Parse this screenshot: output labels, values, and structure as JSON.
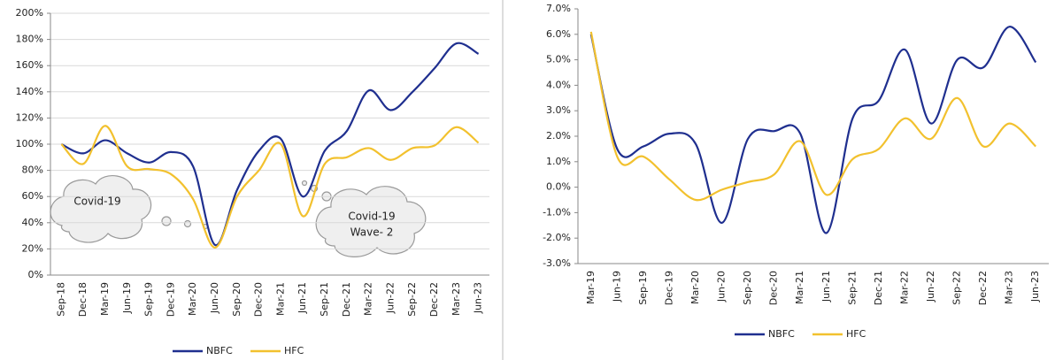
{
  "chart_data": [
    {
      "type": "line",
      "categories": [
        "Sep-18",
        "Dec-18",
        "Mar-19",
        "Jun-19",
        "Sep-19",
        "Dec-19",
        "Mar-20",
        "Jun-20",
        "Sep-20",
        "Dec-20",
        "Mar-21",
        "Jun-21",
        "Sep-21",
        "Dec-21",
        "Mar-22",
        "Jun-22",
        "Sep-22",
        "Dec-22",
        "Mar-23",
        "Jun-23"
      ],
      "series": [
        {
          "name": "NBFC",
          "color": "#1f2f8f",
          "values": [
            100,
            93,
            103,
            93,
            86,
            94,
            83,
            23,
            65,
            95,
            104,
            60,
            95,
            110,
            141,
            126,
            140,
            158,
            177,
            169
          ]
        },
        {
          "name": "HFC",
          "color": "#f2c12e",
          "values": [
            100,
            85,
            114,
            83,
            81,
            77,
            58,
            21,
            60,
            80,
            100,
            45,
            85,
            90,
            97,
            88,
            97,
            99,
            113,
            101
          ]
        }
      ],
      "ylim": [
        0,
        200
      ],
      "yticks": [
        {
          "value": 0,
          "label": "0%"
        },
        {
          "value": 20,
          "label": "20%"
        },
        {
          "value": 40,
          "label": "40%"
        },
        {
          "value": 60,
          "label": "60%"
        },
        {
          "value": 80,
          "label": "80%"
        },
        {
          "value": 100,
          "label": "100%"
        },
        {
          "value": 120,
          "label": "120%"
        },
        {
          "value": 140,
          "label": "140%"
        },
        {
          "value": 160,
          "label": "160%"
        },
        {
          "value": 180,
          "label": "180%"
        },
        {
          "value": 200,
          "label": "200%"
        }
      ],
      "grid": true,
      "annotations": [
        [
          "Covid-19"
        ],
        [
          "Covid-19",
          "Wave- 2"
        ]
      ]
    },
    {
      "type": "line",
      "categories": [
        "Mar-19",
        "Jun-19",
        "Sep-19",
        "Dec-19",
        "Mar-20",
        "Jun-20",
        "Sep-20",
        "Dec-20",
        "Mar-21",
        "Jun-21",
        "Sep-21",
        "Dec-21",
        "Mar-22",
        "Jun-22",
        "Sep-22",
        "Dec-22",
        "Mar-23",
        "Jun-23"
      ],
      "series": [
        {
          "name": "NBFC",
          "color": "#1f2f8f",
          "values": [
            6.0,
            1.5,
            1.6,
            2.1,
            1.7,
            -1.4,
            1.9,
            2.2,
            2.1,
            -1.8,
            2.7,
            3.4,
            5.4,
            2.5,
            5.0,
            4.7,
            6.3,
            4.9
          ]
        },
        {
          "name": "HFC",
          "color": "#f2c12e",
          "values": [
            6.1,
            1.2,
            1.2,
            0.3,
            -0.5,
            -0.1,
            0.2,
            0.5,
            1.8,
            -0.3,
            1.1,
            1.5,
            2.7,
            1.9,
            3.5,
            1.6,
            2.5,
            1.6
          ]
        }
      ],
      "ylim": [
        -3,
        7
      ],
      "yticks": [
        {
          "value": -3,
          "label": "-3.0%"
        },
        {
          "value": -2,
          "label": "-2.0%"
        },
        {
          "value": -1,
          "label": "-1.0%"
        },
        {
          "value": 0,
          "label": "0.0%"
        },
        {
          "value": 1,
          "label": "1.0%"
        },
        {
          "value": 2,
          "label": "2.0%"
        },
        {
          "value": 3,
          "label": "3.0%"
        },
        {
          "value": 4,
          "label": "4.0%"
        },
        {
          "value": 5,
          "label": "5.0%"
        },
        {
          "value": 6,
          "label": "6.0%"
        },
        {
          "value": 7,
          "label": "7.0%"
        }
      ],
      "grid": false
    }
  ]
}
